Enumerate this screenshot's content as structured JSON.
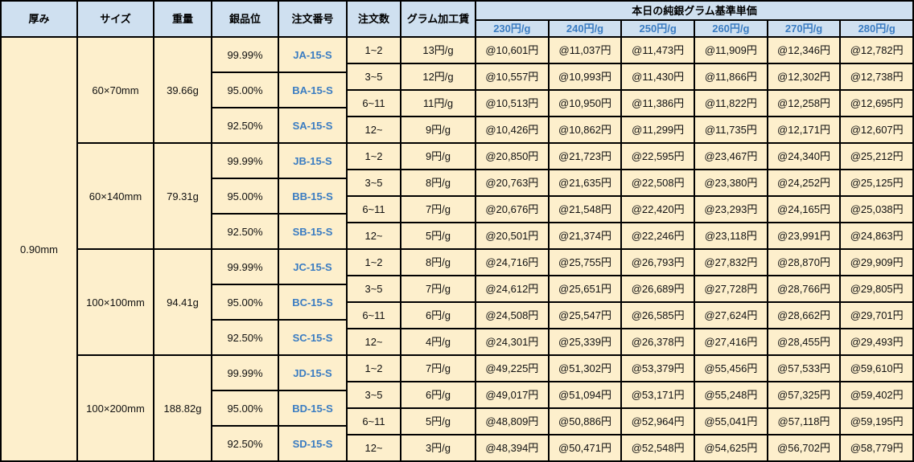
{
  "table": {
    "columns": [
      "厚み",
      "サイズ",
      "重量",
      "銀品位",
      "注文番号",
      "注文数",
      "グラム加工賃"
    ],
    "price_header": {
      "title": "本日の純銀グラム基準単価",
      "tiers": [
        "230円/g",
        "240円/g",
        "250円/g",
        "260円/g",
        "270円/g",
        "280円/g"
      ]
    },
    "thickness": "0.90mm",
    "colors": {
      "header_bg": "#cfe0f0",
      "cell_bg": "#fdefcc",
      "accent_blue": "#3a7cc2",
      "grid": "#000000"
    },
    "blocks": [
      {
        "size": "60×70mm",
        "weight": "39.66g",
        "purities": [
          {
            "purity": "99.99%",
            "code": "JA-15-S"
          },
          {
            "purity": "95.00%",
            "code": "BA-15-S"
          },
          {
            "purity": "92.50%",
            "code": "SA-15-S"
          }
        ],
        "rows": [
          {
            "qty": "1~2",
            "fee": "13円/g",
            "prices": [
              "@10,601円",
              "@11,037円",
              "@11,473円",
              "@11,909円",
              "@12,346円",
              "@12,782円"
            ]
          },
          {
            "qty": "3~5",
            "fee": "12円/g",
            "prices": [
              "@10,557円",
              "@10,993円",
              "@11,430円",
              "@11,866円",
              "@12,302円",
              "@12,738円"
            ]
          },
          {
            "qty": "6~11",
            "fee": "11円/g",
            "prices": [
              "@10,513円",
              "@10,950円",
              "@11,386円",
              "@11,822円",
              "@12,258円",
              "@12,695円"
            ]
          },
          {
            "qty": "12~",
            "fee": "9円/g",
            "prices": [
              "@10,426円",
              "@10,862円",
              "@11,299円",
              "@11,735円",
              "@12,171円",
              "@12,607円"
            ]
          }
        ]
      },
      {
        "size": "60×140mm",
        "weight": "79.31g",
        "purities": [
          {
            "purity": "99.99%",
            "code": "JB-15-S"
          },
          {
            "purity": "95.00%",
            "code": "BB-15-S"
          },
          {
            "purity": "92.50%",
            "code": "SB-15-S"
          }
        ],
        "rows": [
          {
            "qty": "1~2",
            "fee": "9円/g",
            "prices": [
              "@20,850円",
              "@21,723円",
              "@22,595円",
              "@23,467円",
              "@24,340円",
              "@25,212円"
            ]
          },
          {
            "qty": "3~5",
            "fee": "8円/g",
            "prices": [
              "@20,763円",
              "@21,635円",
              "@22,508円",
              "@23,380円",
              "@24,252円",
              "@25,125円"
            ]
          },
          {
            "qty": "6~11",
            "fee": "7円/g",
            "prices": [
              "@20,676円",
              "@21,548円",
              "@22,420円",
              "@23,293円",
              "@24,165円",
              "@25,038円"
            ]
          },
          {
            "qty": "12~",
            "fee": "5円/g",
            "prices": [
              "@20,501円",
              "@21,374円",
              "@22,246円",
              "@23,118円",
              "@23,991円",
              "@24,863円"
            ]
          }
        ]
      },
      {
        "size": "100×100mm",
        "weight": "94.41g",
        "purities": [
          {
            "purity": "99.99%",
            "code": "JC-15-S"
          },
          {
            "purity": "95.00%",
            "code": "BC-15-S"
          },
          {
            "purity": "92.50%",
            "code": "SC-15-S"
          }
        ],
        "rows": [
          {
            "qty": "1~2",
            "fee": "8円/g",
            "prices": [
              "@24,716円",
              "@25,755円",
              "@26,793円",
              "@27,832円",
              "@28,870円",
              "@29,909円"
            ]
          },
          {
            "qty": "3~5",
            "fee": "7円/g",
            "prices": [
              "@24,612円",
              "@25,651円",
              "@26,689円",
              "@27,728円",
              "@28,766円",
              "@29,805円"
            ]
          },
          {
            "qty": "6~11",
            "fee": "6円/g",
            "prices": [
              "@24,508円",
              "@25,547円",
              "@26,585円",
              "@27,624円",
              "@28,662円",
              "@29,701円"
            ]
          },
          {
            "qty": "12~",
            "fee": "4円/g",
            "prices": [
              "@24,301円",
              "@25,339円",
              "@26,378円",
              "@27,416円",
              "@28,455円",
              "@29,493円"
            ]
          }
        ]
      },
      {
        "size": "100×200mm",
        "weight": "188.82g",
        "purities": [
          {
            "purity": "99.99%",
            "code": "JD-15-S"
          },
          {
            "purity": "95.00%",
            "code": "BD-15-S"
          },
          {
            "purity": "92.50%",
            "code": "SD-15-S"
          }
        ],
        "rows": [
          {
            "qty": "1~2",
            "fee": "7円/g",
            "prices": [
              "@49,225円",
              "@51,302円",
              "@53,379円",
              "@55,456円",
              "@57,533円",
              "@59,610円"
            ]
          },
          {
            "qty": "3~5",
            "fee": "6円/g",
            "prices": [
              "@49,017円",
              "@51,094円",
              "@53,171円",
              "@55,248円",
              "@57,325円",
              "@59,402円"
            ]
          },
          {
            "qty": "6~11",
            "fee": "5円/g",
            "prices": [
              "@48,809円",
              "@50,886円",
              "@52,964円",
              "@55,041円",
              "@57,118円",
              "@59,195円"
            ]
          },
          {
            "qty": "12~",
            "fee": "3円/g",
            "prices": [
              "@48,394円",
              "@50,471円",
              "@52,548円",
              "@54,625円",
              "@56,702円",
              "@58,779円"
            ]
          }
        ]
      }
    ]
  }
}
